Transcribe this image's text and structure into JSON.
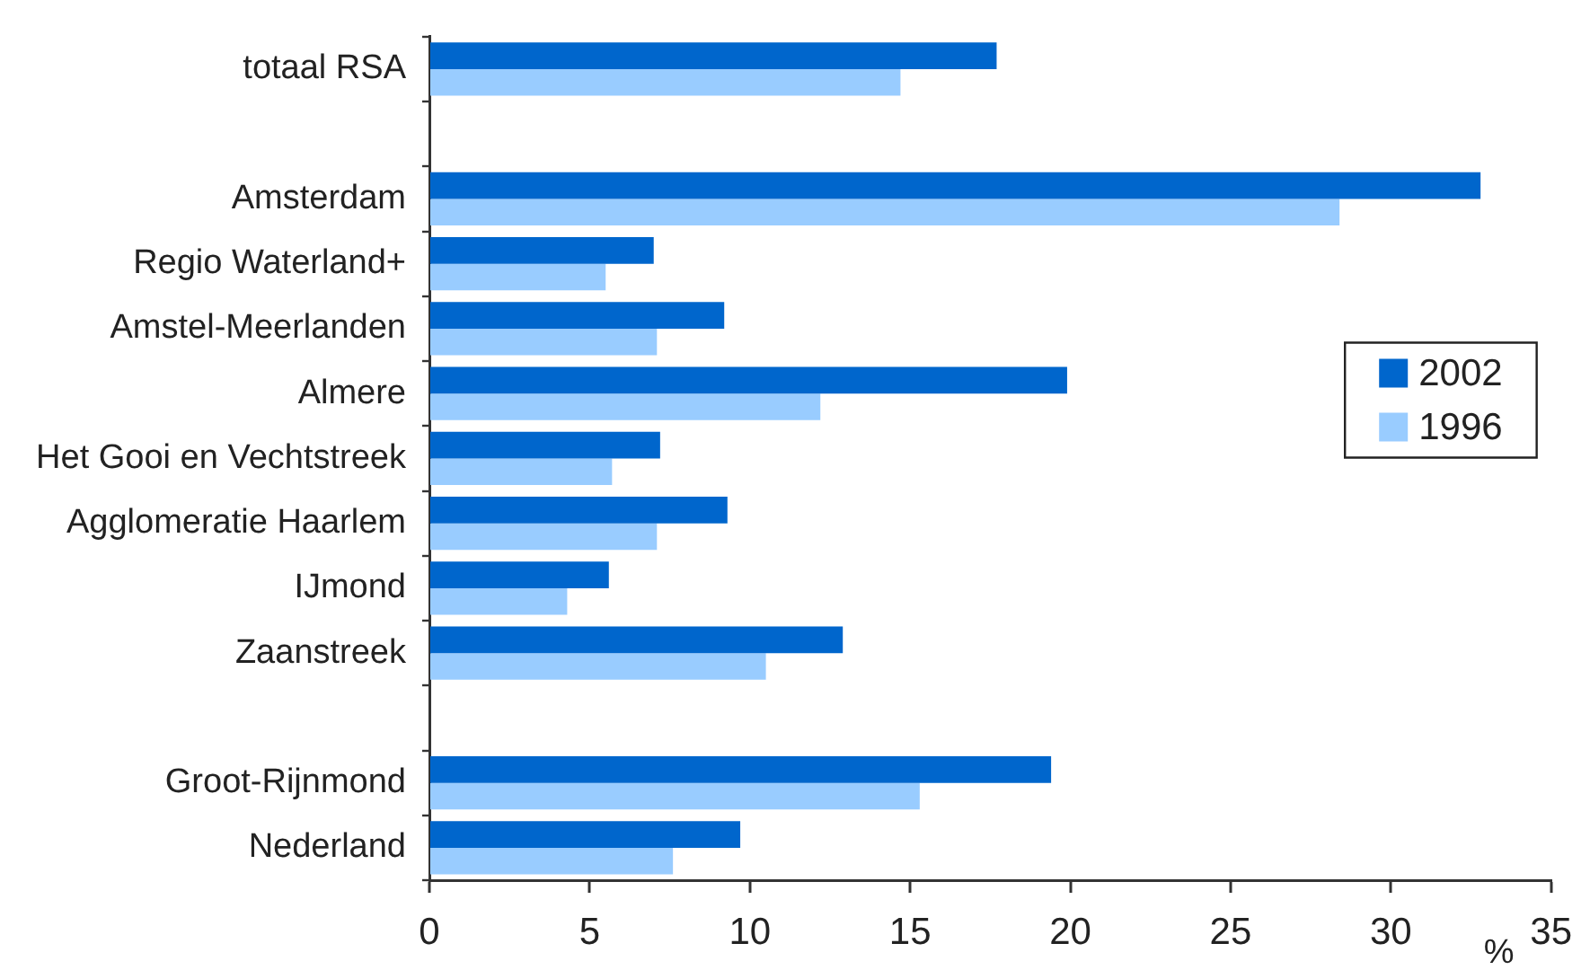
{
  "chart_data": {
    "type": "bar",
    "orientation": "horizontal",
    "xlabel": "%",
    "categories": [
      "totaal RSA",
      null,
      "Amsterdam",
      "Regio Waterland+",
      "Amstel-Meerlanden",
      "Almere",
      "Het Gooi en Vechtstreek",
      "Agglomeratie Haarlem",
      "IJmond",
      "Zaanstreek",
      null,
      "Groot-Rijnmond",
      "Nederland"
    ],
    "series": [
      {
        "name": "2002",
        "color": "#0066cc",
        "values": [
          17.7,
          null,
          32.8,
          7.0,
          9.2,
          19.9,
          7.2,
          9.3,
          5.6,
          12.9,
          null,
          19.4,
          9.7
        ]
      },
      {
        "name": "1996",
        "color": "#99ccff",
        "values": [
          14.7,
          null,
          28.4,
          5.5,
          7.1,
          12.2,
          5.7,
          7.1,
          4.3,
          10.5,
          null,
          15.3,
          7.6
        ]
      }
    ],
    "xlim": [
      0,
      35
    ],
    "xticks": [
      0,
      5,
      10,
      15,
      20,
      25,
      30,
      35
    ],
    "grid": false,
    "legend": "right"
  }
}
